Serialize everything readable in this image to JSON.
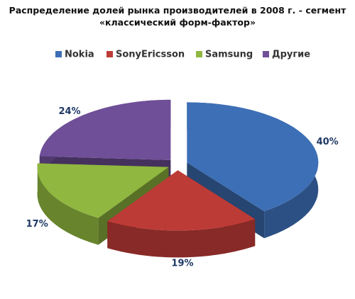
{
  "chart_data": {
    "type": "pie3d",
    "title": "Распределение долей рынка производителей в 2008 г. - сегмент «классический форм-фактор»",
    "categories": [
      "Nokia",
      "SonyEricsson",
      "Samsung",
      "Другие"
    ],
    "values": [
      40,
      19,
      17,
      24
    ],
    "value_labels": [
      "40%",
      "19%",
      "17%",
      "24%"
    ],
    "colors": [
      "#3d6fb6",
      "#bd3b36",
      "#90b73f",
      "#6f4f98"
    ],
    "legend": "top"
  }
}
